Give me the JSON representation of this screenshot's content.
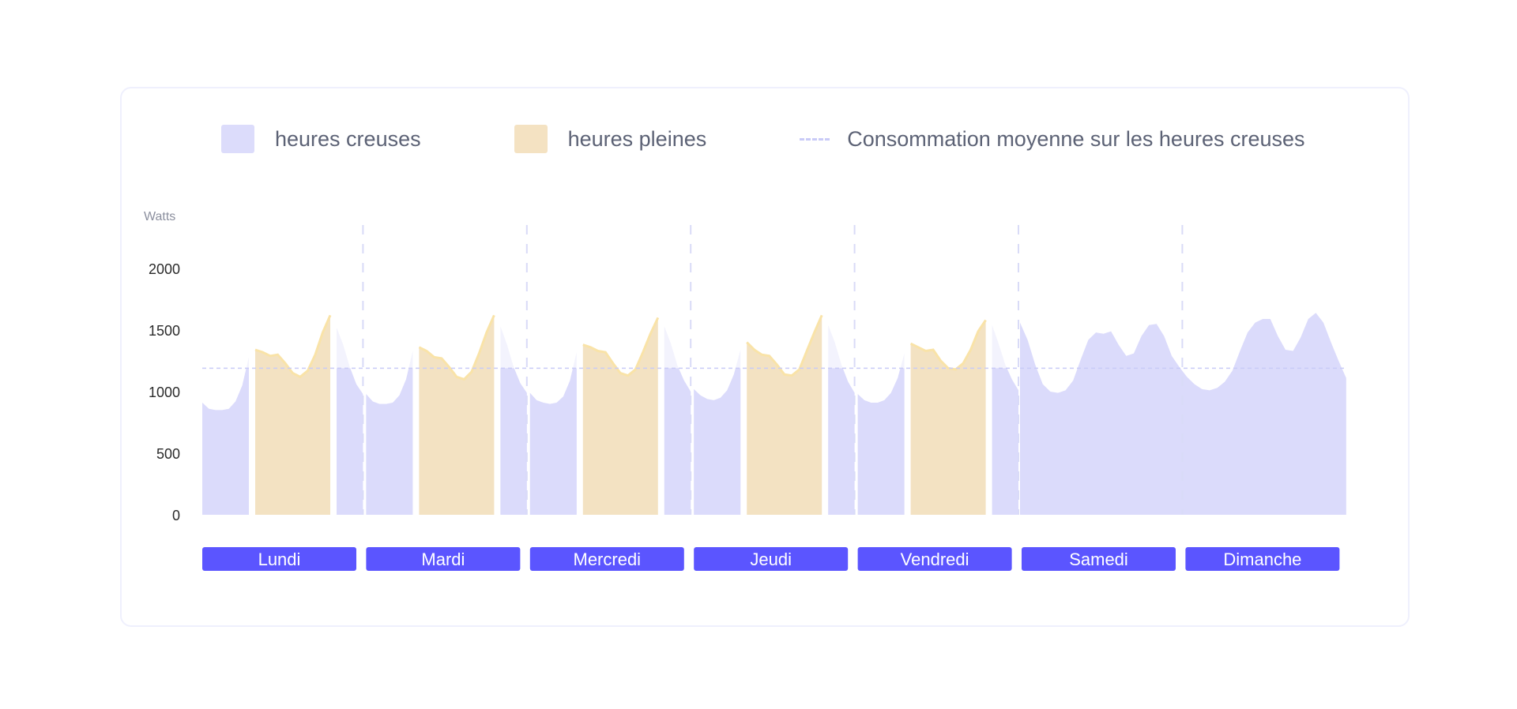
{
  "legend": {
    "creuses_label": "heures creuses",
    "pleines_label": "heures pleines",
    "moyenne_label": "Consommation moyenne sur les heures creuses"
  },
  "colors": {
    "creuses": "#dbdbfb",
    "creuses_light": "#f3f3fd",
    "pleines": "#f3e2c2",
    "pleines_edge": "#f9e3a8",
    "day_badge": "#5b55ff",
    "grid": "#d9dbf7",
    "average": "#c9cbf7"
  },
  "chart_data": {
    "type": "area",
    "title": "",
    "ylabel": "Watts",
    "ylim": [
      0,
      2000
    ],
    "yticks": [
      0,
      500,
      1000,
      1500,
      2000
    ],
    "average_line": 1190,
    "x_categories": [
      "Lundi",
      "Mardi",
      "Mercredi",
      "Jeudi",
      "Vendredi",
      "Samedi",
      "Dimanche"
    ],
    "weekdays": [
      {
        "name": "Lundi",
        "creuses_nuit": [
          910,
          860,
          850,
          850,
          860,
          920,
          1050,
          1280
        ],
        "pleines": [
          1340,
          1320,
          1290,
          1300,
          1230,
          1150,
          1120,
          1170,
          1300,
          1480,
          1620
        ],
        "creuses_soir": [
          1520,
          1380,
          1200,
          1060,
          980
        ]
      },
      {
        "name": "Mardi",
        "creuses_nuit": [
          980,
          920,
          900,
          900,
          910,
          970,
          1100,
          1330
        ],
        "pleines": [
          1360,
          1330,
          1280,
          1270,
          1200,
          1120,
          1100,
          1160,
          1310,
          1480,
          1620
        ],
        "creuses_soir": [
          1530,
          1380,
          1200,
          1070,
          990
        ]
      },
      {
        "name": "Mercredi",
        "creuses_nuit": [
          990,
          930,
          910,
          900,
          910,
          960,
          1090,
          1320
        ],
        "pleines": [
          1380,
          1360,
          1330,
          1320,
          1230,
          1150,
          1130,
          1180,
          1320,
          1470,
          1600
        ],
        "creuses_soir": [
          1530,
          1390,
          1210,
          1090,
          1000
        ]
      },
      {
        "name": "Jeudi",
        "creuses_nuit": [
          1020,
          970,
          940,
          930,
          950,
          1010,
          1140,
          1340
        ],
        "pleines": [
          1400,
          1340,
          1300,
          1290,
          1220,
          1140,
          1130,
          1180,
          1330,
          1480,
          1620
        ],
        "creuses_soir": [
          1540,
          1400,
          1220,
          1080,
          990
        ]
      },
      {
        "name": "Vendredi",
        "creuses_nuit": [
          980,
          930,
          910,
          910,
          930,
          990,
          1110,
          1310
        ],
        "pleines": [
          1390,
          1360,
          1330,
          1340,
          1250,
          1190,
          1180,
          1230,
          1340,
          1490,
          1580
        ],
        "creuses_soir": [
          1540,
          1390,
          1220,
          1100,
          1010
        ]
      }
    ],
    "weekend": {
      "hourly": [
        1560,
        1420,
        1220,
        1060,
        1000,
        990,
        1010,
        1090,
        1260,
        1420,
        1480,
        1470,
        1490,
        1380,
        1290,
        1310,
        1450,
        1540,
        1550,
        1450,
        1290,
        1200,
        1120,
        1060,
        1020,
        1010,
        1030,
        1080,
        1170,
        1330,
        1480,
        1560,
        1590,
        1590,
        1450,
        1340,
        1330,
        1440,
        1590,
        1640,
        1560,
        1400,
        1250,
        1110
      ]
    },
    "day_separators": [
      "Mardi",
      "Mercredi",
      "Jeudi",
      "Vendredi",
      "Samedi",
      "Dimanche"
    ]
  }
}
